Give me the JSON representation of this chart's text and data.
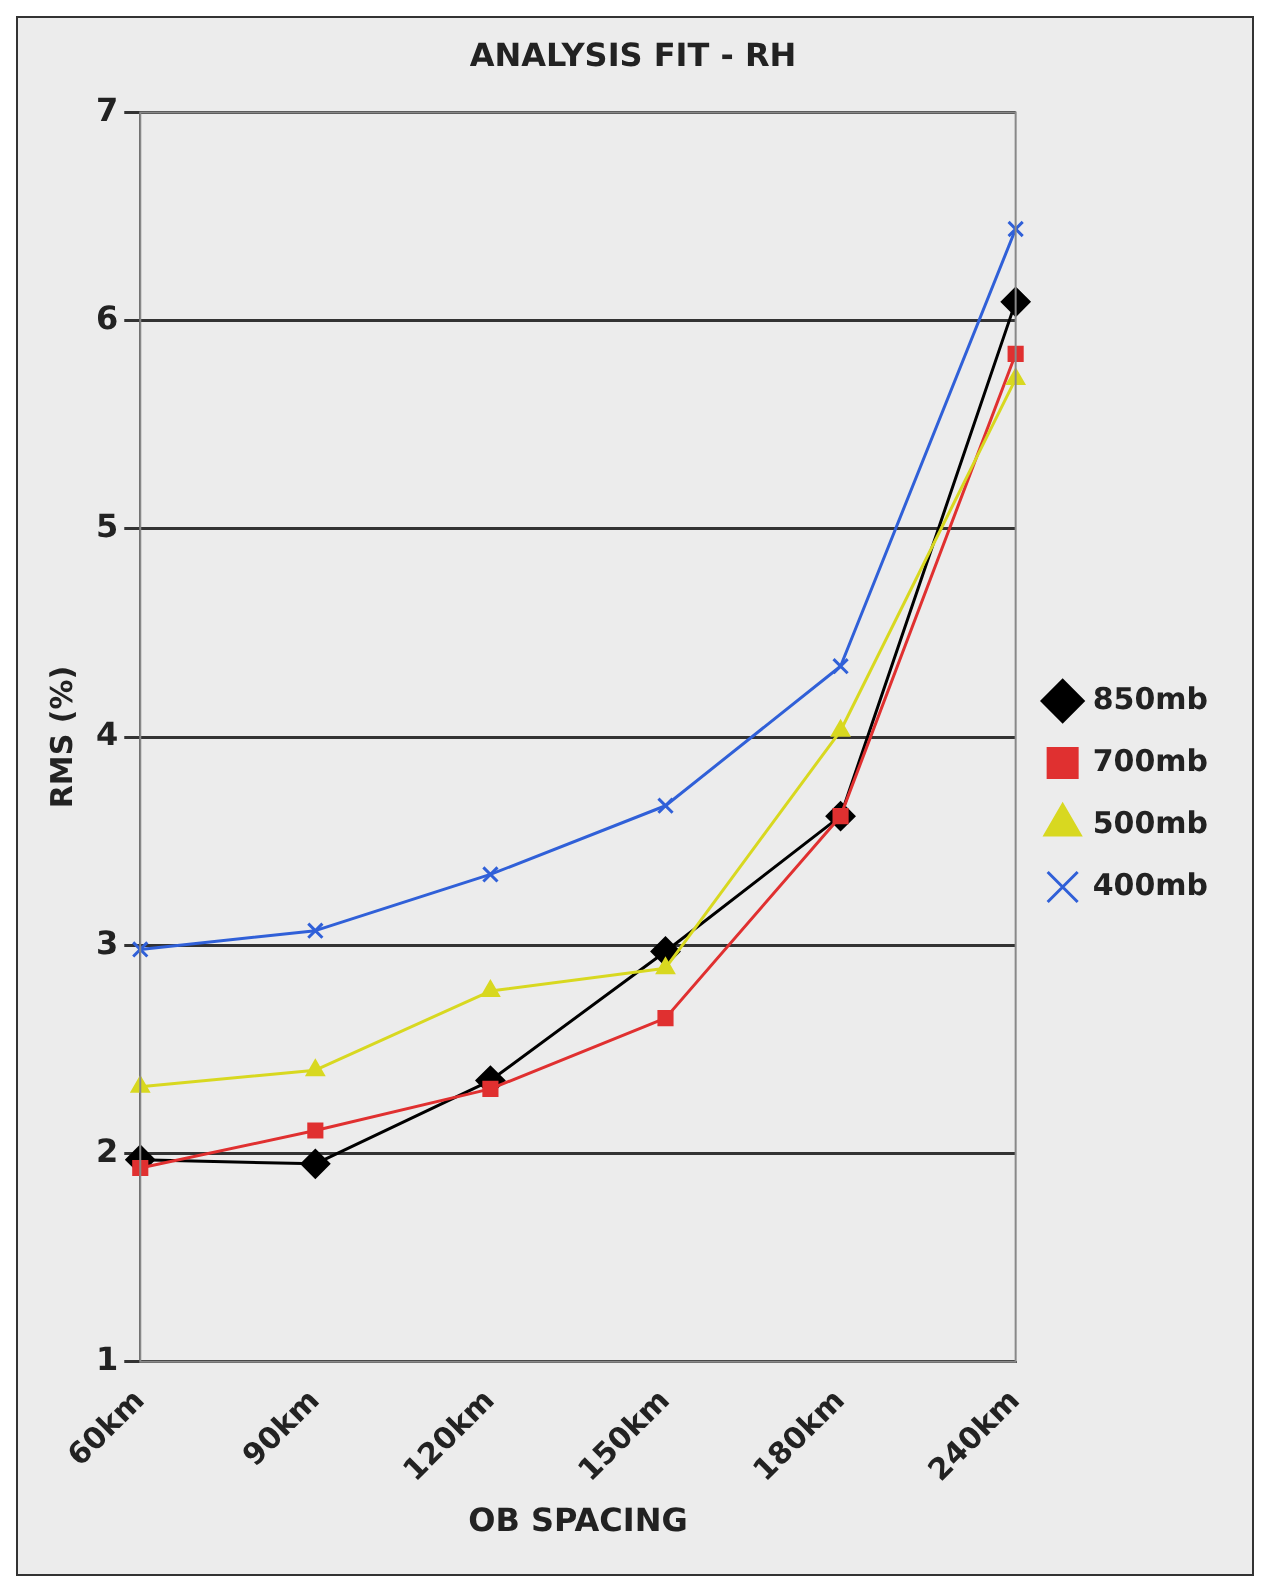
{
  "chart_data": {
    "type": "line",
    "title": "ANALYSIS FIT - RH",
    "xlabel": "OB SPACING",
    "ylabel": "RMS (%)",
    "categories": [
      "60km",
      "90km",
      "120km",
      "150km",
      "180km",
      "240km"
    ],
    "series": [
      {
        "name": "850mb",
        "color": "#000000",
        "marker": "diamond",
        "values": [
          1.97,
          1.95,
          2.35,
          2.97,
          3.62,
          6.09
        ]
      },
      {
        "name": "700mb",
        "color": "#e03030",
        "marker": "square",
        "values": [
          1.93,
          2.11,
          2.31,
          2.65,
          3.62,
          5.84
        ]
      },
      {
        "name": "500mb",
        "color": "#d8d820",
        "marker": "triangle",
        "values": [
          2.32,
          2.4,
          2.78,
          2.89,
          4.03,
          5.72
        ]
      },
      {
        "name": "400mb",
        "color": "#3060d8",
        "marker": "cross",
        "values": [
          2.98,
          3.07,
          3.34,
          3.67,
          4.34,
          6.44
        ]
      }
    ],
    "ylim": [
      1,
      7
    ],
    "yticks": [
      1,
      2,
      3,
      4,
      5,
      6,
      7
    ],
    "grid": "y",
    "legend": "right",
    "line_style": "solid"
  }
}
